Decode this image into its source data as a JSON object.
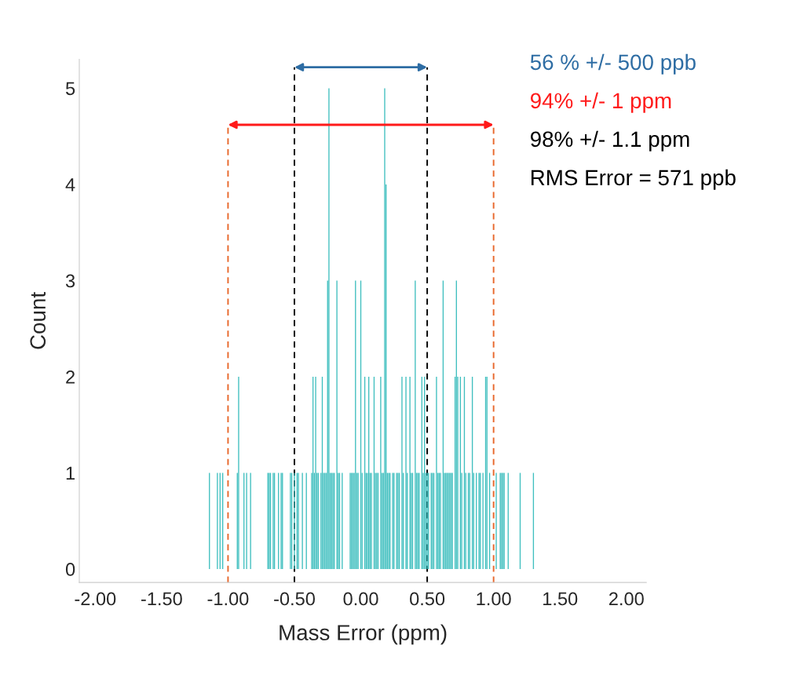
{
  "chart_data": {
    "type": "bar",
    "xlabel": "Mass Error (ppm)",
    "ylabel": "Count",
    "color": "#40bfbf",
    "x": [
      -1.14,
      -1.08,
      -1.06,
      -1.04,
      -0.93,
      -0.92,
      -0.88,
      -0.86,
      -0.83,
      -0.7,
      -0.69,
      -0.68,
      -0.66,
      -0.65,
      -0.62,
      -0.6,
      -0.59,
      -0.53,
      -0.52,
      -0.5,
      -0.48,
      -0.47,
      -0.44,
      -0.41,
      -0.37,
      -0.36,
      -0.35,
      -0.34,
      -0.33,
      -0.32,
      -0.3,
      -0.29,
      -0.28,
      -0.27,
      -0.26,
      -0.25,
      -0.24,
      -0.23,
      -0.22,
      -0.21,
      -0.2,
      -0.18,
      -0.17,
      -0.16,
      -0.14,
      -0.08,
      -0.07,
      -0.06,
      -0.05,
      -0.04,
      -0.03,
      -0.02,
      0.0,
      0.01,
      0.03,
      0.04,
      0.05,
      0.06,
      0.07,
      0.08,
      0.1,
      0.11,
      0.12,
      0.13,
      0.15,
      0.16,
      0.17,
      0.18,
      0.19,
      0.2,
      0.21,
      0.22,
      0.24,
      0.25,
      0.27,
      0.28,
      0.29,
      0.31,
      0.32,
      0.34,
      0.35,
      0.37,
      0.38,
      0.39,
      0.41,
      0.42,
      0.43,
      0.44,
      0.46,
      0.47,
      0.48,
      0.49,
      0.5,
      0.51,
      0.53,
      0.54,
      0.55,
      0.57,
      0.58,
      0.59,
      0.6,
      0.62,
      0.63,
      0.64,
      0.65,
      0.66,
      0.67,
      0.68,
      0.69,
      0.71,
      0.72,
      0.73,
      0.75,
      0.76,
      0.78,
      0.79,
      0.81,
      0.82,
      0.84,
      0.85,
      0.87,
      0.89,
      0.9,
      0.92,
      0.94,
      0.95,
      0.97,
      1.02,
      1.05,
      1.06,
      1.07,
      1.08,
      1.11,
      1.2,
      1.3
    ],
    "values": [
      1,
      1,
      1,
      1,
      1,
      2,
      1,
      1,
      1,
      1,
      1,
      1,
      1,
      1,
      1,
      1,
      1,
      1,
      1,
      1,
      1,
      1,
      1,
      1,
      1,
      2,
      1,
      2,
      1,
      1,
      1,
      2,
      1,
      1,
      1,
      3,
      5,
      1,
      1,
      1,
      1,
      3,
      1,
      1,
      1,
      1,
      1,
      1,
      1,
      3,
      1,
      1,
      3,
      1,
      2,
      1,
      1,
      2,
      1,
      1,
      2,
      1,
      1,
      1,
      2,
      1,
      1,
      5,
      4,
      1,
      1,
      1,
      1,
      1,
      1,
      1,
      1,
      2,
      1,
      2,
      1,
      2,
      1,
      1,
      3,
      1,
      1,
      1,
      2,
      1,
      2,
      1,
      1,
      1,
      1,
      1,
      1,
      2,
      1,
      1,
      1,
      3,
      1,
      1,
      1,
      1,
      1,
      1,
      1,
      2,
      3,
      2,
      2,
      1,
      2,
      1,
      1,
      1,
      2,
      1,
      1,
      1,
      1,
      1,
      2,
      2,
      1,
      1,
      1,
      1,
      1,
      1,
      1,
      1,
      1
    ],
    "xlim": [
      -2.12,
      2.15
    ],
    "ylim": [
      -0.14,
      5.3
    ],
    "xticks": [
      {
        "value": -2,
        "label": "-2.00"
      },
      {
        "value": -1.5,
        "label": "-1.50"
      },
      {
        "value": -1,
        "label": "-1.00"
      },
      {
        "value": -0.5,
        "label": "-0.50"
      },
      {
        "value": 0,
        "label": "0.00"
      },
      {
        "value": 0.5,
        "label": "0.50"
      },
      {
        "value": 1,
        "label": "1.00"
      },
      {
        "value": 1.5,
        "label": "1.50"
      },
      {
        "value": 2,
        "label": "2.00"
      }
    ],
    "yticks": [
      0,
      1,
      2,
      3,
      4,
      5
    ],
    "ref_lines": [
      {
        "axis": "x",
        "value": -1,
        "color": "#e8692e",
        "line_style": "dashed"
      },
      {
        "axis": "x",
        "value": 1,
        "color": "#e8692e",
        "line_style": "dashed"
      },
      {
        "axis": "x",
        "value": -0.5,
        "color": "#000000",
        "line_style": "dashed"
      },
      {
        "axis": "x",
        "value": 0.5,
        "color": "#000000",
        "line_style": "dashed"
      }
    ],
    "annotations": [
      "56 % +/- 500 ppb",
      "94% +/- 1 ppm",
      "98% +/- 1.1 ppm",
      "RMS Error = 571 ppb"
    ],
    "grid": false,
    "legend": false
  }
}
